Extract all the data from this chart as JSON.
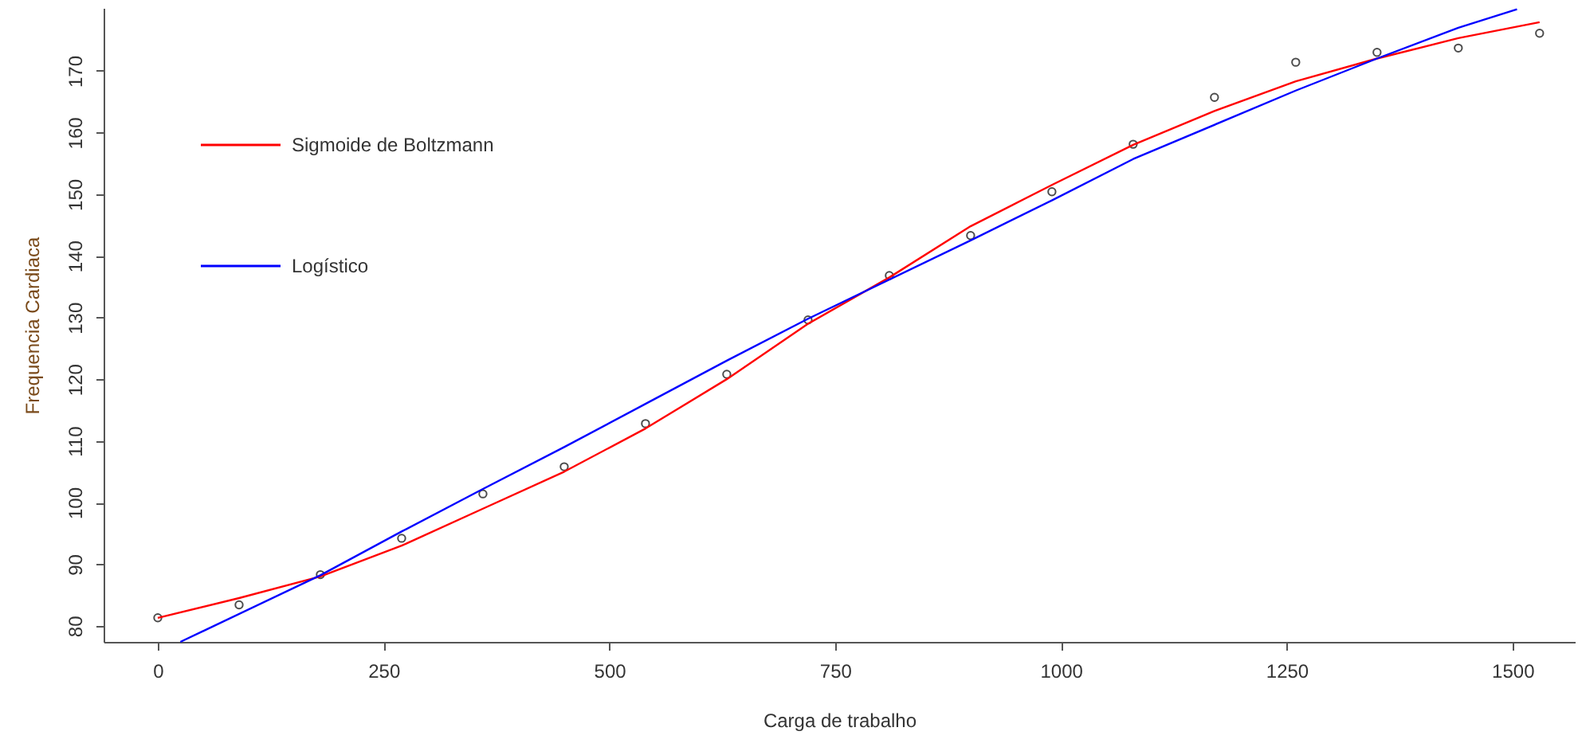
{
  "chart_data": {
    "type": "line",
    "xlabel": "Carga de trabalho",
    "ylabel": "Frequencia Cardiaca",
    "xlim": [
      -60,
      1569
    ],
    "ylim": [
      77.4,
      180.2
    ],
    "xticks": [
      0,
      250,
      500,
      750,
      1000,
      1250,
      1500
    ],
    "yticks": [
      80,
      90,
      100,
      110,
      120,
      130,
      140,
      150,
      160,
      170
    ],
    "grid": false,
    "legend": "top left",
    "line_style": "solid",
    "series": [
      {
        "type": "scatter",
        "marker": "circle",
        "color": "#000000",
        "x": [
          0,
          90,
          180,
          270,
          360,
          450,
          540,
          630,
          720,
          810,
          900,
          990,
          1080,
          1170,
          1260,
          1350,
          1440,
          1530
        ],
        "values": [
          81.3,
          83.4,
          88.3,
          94.2,
          101.4,
          105.8,
          112.8,
          120.8,
          129.6,
          136.8,
          143.3,
          150.4,
          158.1,
          165.7,
          171.4,
          173,
          173.7,
          176.1
        ]
      },
      {
        "name": "Sigmoide de Boltzmann",
        "color": "#ff0000",
        "x": [
          0,
          90,
          180,
          270,
          360,
          450,
          540,
          630,
          720,
          810,
          900,
          990,
          1080,
          1170,
          1260,
          1350,
          1440,
          1530
        ],
        "values": [
          81.3,
          84.5,
          88,
          93,
          99,
          105,
          112,
          120,
          129,
          136.5,
          144.8,
          151.5,
          158,
          163.5,
          168.3,
          172,
          175.3,
          177.9
        ]
      },
      {
        "name": "Logístico",
        "color": "#0000ff",
        "x": [
          25,
          180,
          270,
          360,
          450,
          540,
          630,
          720,
          900,
          990,
          1080,
          1260,
          1350,
          1440,
          1505
        ],
        "values": [
          77.4,
          88.2,
          95.3,
          102.2,
          109,
          116,
          123,
          129.8,
          142.5,
          149,
          155.7,
          166.8,
          172,
          177,
          180
        ]
      }
    ]
  }
}
